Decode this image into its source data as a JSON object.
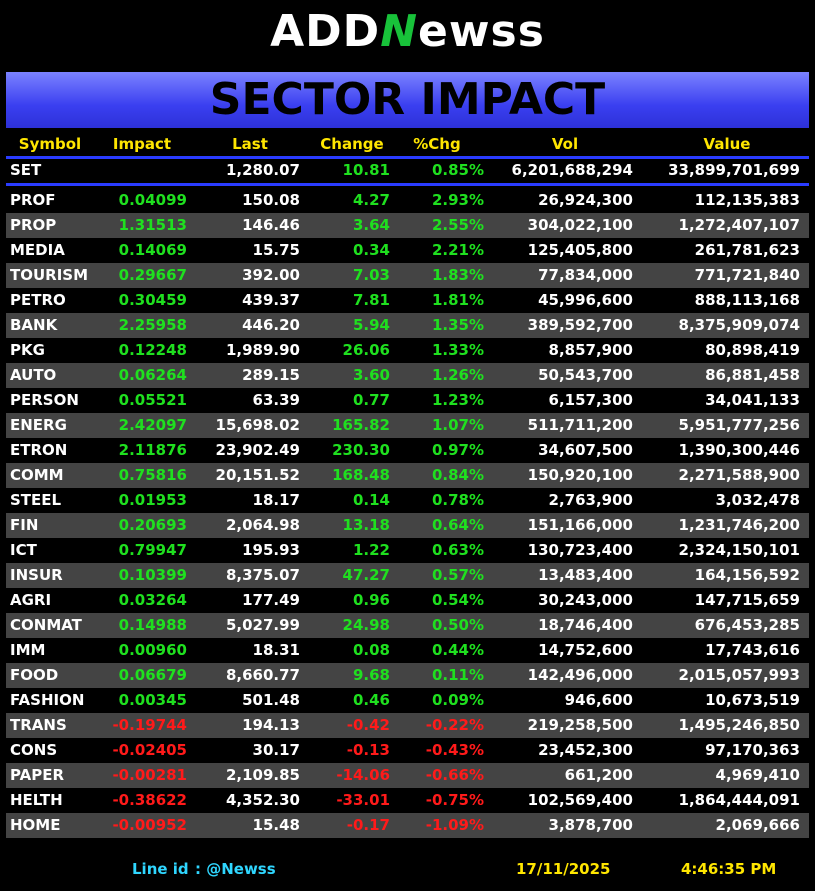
{
  "header": {
    "logo": {
      "prefix": "ADD",
      "mark": "N",
      "suffix": "ewss"
    },
    "title": "SECTOR IMPACT"
  },
  "table": {
    "columns": [
      "Symbol",
      "Impact",
      "Last",
      "Change",
      "%Chg",
      "Vol",
      "Value"
    ],
    "index_row": [
      "SET",
      null,
      "1,280.07",
      "10.81",
      "0.85%",
      "6,201,688,294",
      "33,899,701,699"
    ],
    "rows": [
      [
        "PROF",
        "0.04099",
        "150.08",
        "4.27",
        "2.93%",
        "26,924,300",
        "112,135,383"
      ],
      [
        "PROP",
        "1.31513",
        "146.46",
        "3.64",
        "2.55%",
        "304,022,100",
        "1,272,407,107"
      ],
      [
        "MEDIA",
        "0.14069",
        "15.75",
        "0.34",
        "2.21%",
        "125,405,800",
        "261,781,623"
      ],
      [
        "TOURISM",
        "0.29667",
        "392.00",
        "7.03",
        "1.83%",
        "77,834,000",
        "771,721,840"
      ],
      [
        "PETRO",
        "0.30459",
        "439.37",
        "7.81",
        "1.81%",
        "45,996,600",
        "888,113,168"
      ],
      [
        "BANK",
        "2.25958",
        "446.20",
        "5.94",
        "1.35%",
        "389,592,700",
        "8,375,909,074"
      ],
      [
        "PKG",
        "0.12248",
        "1,989.90",
        "26.06",
        "1.33%",
        "8,857,900",
        "80,898,419"
      ],
      [
        "AUTO",
        "0.06264",
        "289.15",
        "3.60",
        "1.26%",
        "50,543,700",
        "86,881,458"
      ],
      [
        "PERSON",
        "0.05521",
        "63.39",
        "0.77",
        "1.23%",
        "6,157,300",
        "34,041,133"
      ],
      [
        "ENERG",
        "2.42097",
        "15,698.02",
        "165.82",
        "1.07%",
        "511,711,200",
        "5,951,777,256"
      ],
      [
        "ETRON",
        "2.11876",
        "23,902.49",
        "230.30",
        "0.97%",
        "34,607,500",
        "1,390,300,446"
      ],
      [
        "COMM",
        "0.75816",
        "20,151.52",
        "168.48",
        "0.84%",
        "150,920,100",
        "2,271,588,900"
      ],
      [
        "STEEL",
        "0.01953",
        "18.17",
        "0.14",
        "0.78%",
        "2,763,900",
        "3,032,478"
      ],
      [
        "FIN",
        "0.20693",
        "2,064.98",
        "13.18",
        "0.64%",
        "151,166,000",
        "1,231,746,200"
      ],
      [
        "ICT",
        "0.79947",
        "195.93",
        "1.22",
        "0.63%",
        "130,723,400",
        "2,324,150,101"
      ],
      [
        "INSUR",
        "0.10399",
        "8,375.07",
        "47.27",
        "0.57%",
        "13,483,400",
        "164,156,592"
      ],
      [
        "AGRI",
        "0.03264",
        "177.49",
        "0.96",
        "0.54%",
        "30,243,000",
        "147,715,659"
      ],
      [
        "CONMAT",
        "0.14988",
        "5,027.99",
        "24.98",
        "0.50%",
        "18,746,400",
        "676,453,285"
      ],
      [
        "IMM",
        "0.00960",
        "18.31",
        "0.08",
        "0.44%",
        "14,752,600",
        "17,743,616"
      ],
      [
        "FOOD",
        "0.06679",
        "8,660.77",
        "9.68",
        "0.11%",
        "142,496,000",
        "2,015,057,993"
      ],
      [
        "FASHION",
        "0.00345",
        "501.48",
        "0.46",
        "0.09%",
        "946,600",
        "10,673,519"
      ],
      [
        "TRANS",
        "-0.19744",
        "194.13",
        "-0.42",
        "-0.22%",
        "219,258,500",
        "1,495,246,850"
      ],
      [
        "CONS",
        "-0.02405",
        "30.17",
        "-0.13",
        "-0.43%",
        "23,452,300",
        "97,170,363"
      ],
      [
        "PAPER",
        "-0.00281",
        "2,109.85",
        "-14.06",
        "-0.66%",
        "661,200",
        "4,969,410"
      ],
      [
        "HELTH",
        "-0.38622",
        "4,352.30",
        "-33.01",
        "-0.75%",
        "102,569,400",
        "1,864,444,091"
      ],
      [
        "HOME",
        "-0.00952",
        "15.48",
        "-0.17",
        "-1.09%",
        "3,878,700",
        "2,069,666"
      ]
    ]
  },
  "footer": {
    "line_label": "Line id",
    "line_id": ": @Newss",
    "date": "17/11/2025",
    "time": "4:46:35 PM"
  }
}
